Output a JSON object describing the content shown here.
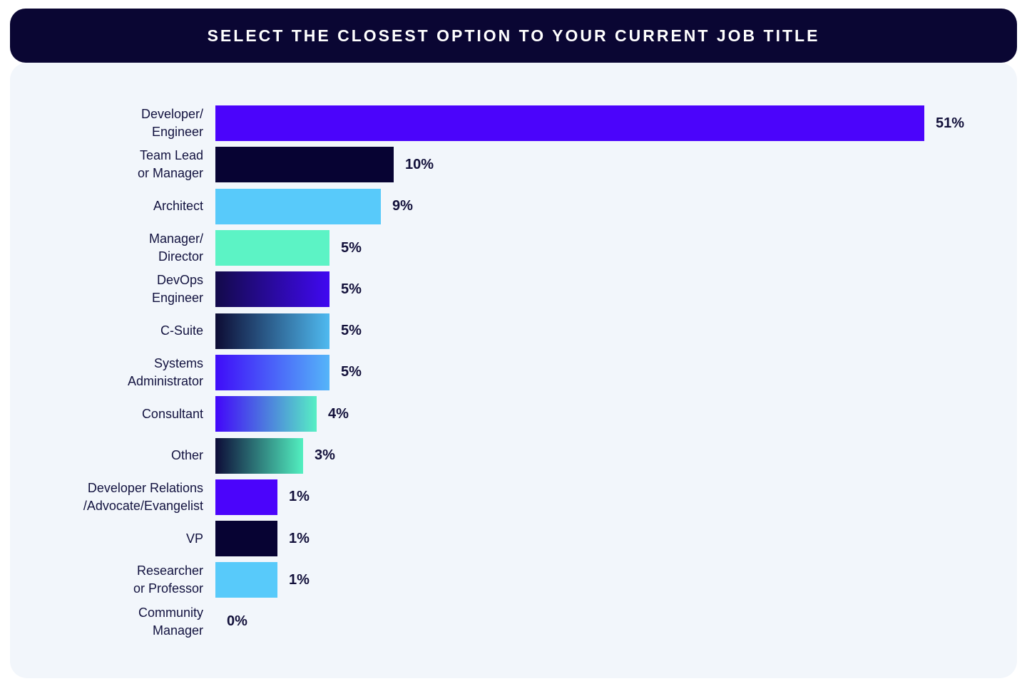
{
  "header": {
    "title": "SELECT THE CLOSEST OPTION TO YOUR CURRENT JOB TITLE"
  },
  "chart_data": {
    "type": "bar",
    "orientation": "horizontal",
    "title": "SELECT THE CLOSEST OPTION TO YOUR CURRENT JOB TITLE",
    "xlabel": "",
    "ylabel": "",
    "xlim": [
      0,
      55
    ],
    "grid": false,
    "legend": false,
    "value_suffix": "%",
    "categories": [
      "Developer/\nEngineer",
      "Team Lead\nor Manager",
      "Architect",
      "Manager/\nDirector",
      "DevOps\nEngineer",
      "C-Suite",
      "Systems\nAdministrator",
      "Consultant",
      "Other",
      "Developer Relations\n/Advocate/Evangelist",
      "VP",
      "Researcher\nor Professor",
      "Community\nManager"
    ],
    "values": [
      51,
      10,
      9,
      5,
      5,
      5,
      5,
      4,
      3,
      1,
      1,
      1,
      0
    ],
    "rows": [
      {
        "label": "Developer/\nEngineer",
        "value": 51,
        "value_label": "51%",
        "color_from": "#4b04fb",
        "color_to": "#4b04fb"
      },
      {
        "label": "Team Lead\nor Manager",
        "value": 10,
        "value_label": "10%",
        "color_from": "#070333",
        "color_to": "#070333"
      },
      {
        "label": "Architect",
        "value": 9,
        "value_label": "9%",
        "color_from": "#58cafa",
        "color_to": "#58cafa"
      },
      {
        "label": "Manager/\nDirector",
        "value": 5,
        "value_label": "5%",
        "color_from": "#5cf3c5",
        "color_to": "#5cf3c5"
      },
      {
        "label": "DevOps\nEngineer",
        "value": 5,
        "value_label": "5%",
        "color_from": "#130a4a",
        "color_to": "#4009f2"
      },
      {
        "label": "C-Suite",
        "value": 5,
        "value_label": "5%",
        "color_from": "#0d0c34",
        "color_to": "#4fbaf0"
      },
      {
        "label": "Systems\nAdministrator",
        "value": 5,
        "value_label": "5%",
        "color_from": "#3f0cf9",
        "color_to": "#55b5f9"
      },
      {
        "label": "Consultant",
        "value": 4,
        "value_label": "4%",
        "color_from": "#4206fa",
        "color_to": "#57efc4"
      },
      {
        "label": "Other",
        "value": 3,
        "value_label": "3%",
        "color_from": "#0d0c38",
        "color_to": "#52f0c0"
      },
      {
        "label": "Developer Relations\n/Advocate/Evangelist",
        "value": 1,
        "value_label": "1%",
        "color_from": "#4b04fb",
        "color_to": "#4b04fb"
      },
      {
        "label": "VP",
        "value": 1,
        "value_label": "1%",
        "color_from": "#070333",
        "color_to": "#070333"
      },
      {
        "label": "Researcher\nor Professor",
        "value": 1,
        "value_label": "1%",
        "color_from": "#58cafa",
        "color_to": "#58cafa"
      },
      {
        "label": "Community\nManager",
        "value": 0,
        "value_label": "0%",
        "color_from": null,
        "color_to": null
      }
    ],
    "colors": {
      "accent_purple": "#4b04fb",
      "dark_navy": "#070333",
      "light_blue": "#58cafa",
      "mint": "#5cf3c5",
      "header_bg": "#0a0633",
      "card_bg": "#f2f6fb",
      "text": "#12123f"
    }
  }
}
